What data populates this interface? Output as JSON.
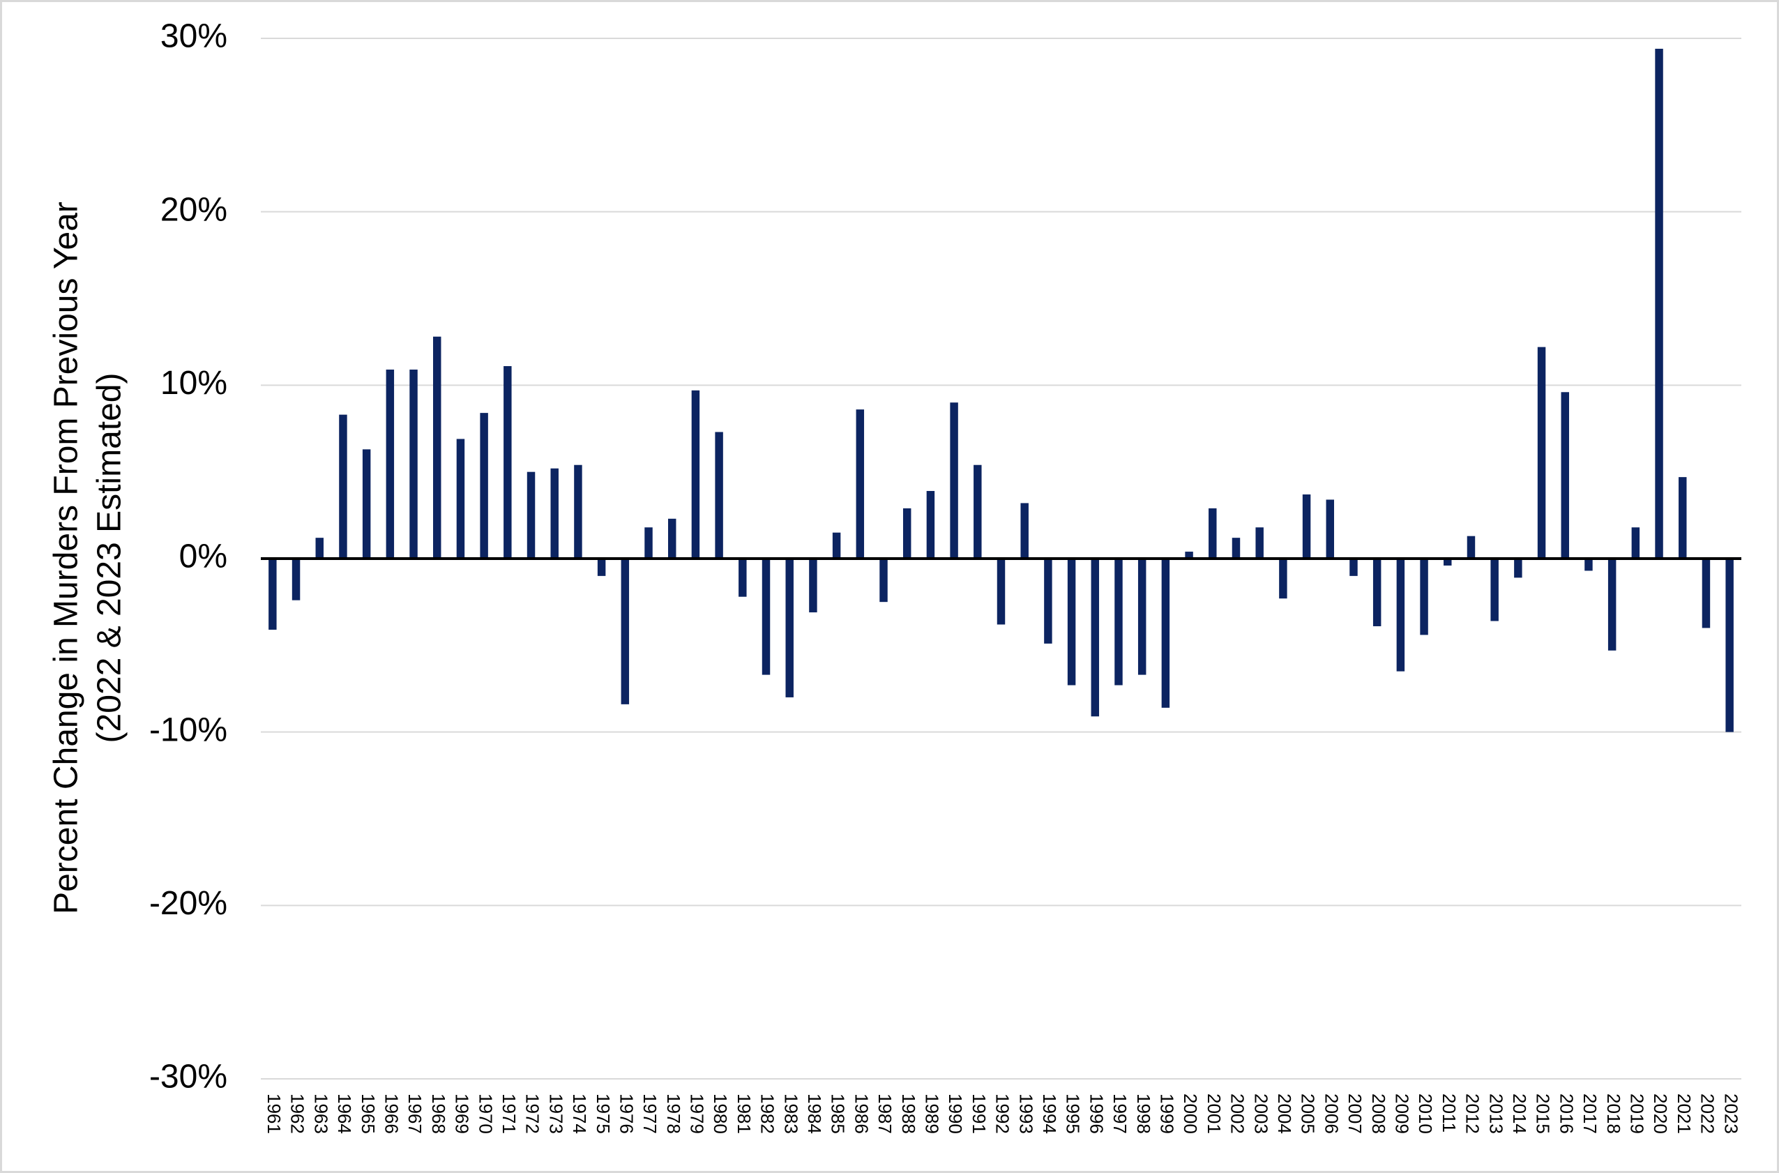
{
  "chart_data": {
    "type": "bar",
    "ylabel": [
      "Percent Change in Murders From Previous Year",
      "(2022 & 2023 Estimated)"
    ],
    "categories": [
      "1961",
      "1962",
      "1963",
      "1964",
      "1965",
      "1966",
      "1967",
      "1968",
      "1969",
      "1970",
      "1971",
      "1972",
      "1973",
      "1974",
      "1975",
      "1976",
      "1977",
      "1978",
      "1979",
      "1980",
      "1981",
      "1982",
      "1983",
      "1984",
      "1985",
      "1986",
      "1987",
      "1988",
      "1989",
      "1990",
      "1991",
      "1992",
      "1993",
      "1994",
      "1995",
      "1996",
      "1997",
      "1998",
      "1999",
      "2000",
      "2001",
      "2002",
      "2003",
      "2004",
      "2005",
      "2006",
      "2007",
      "2008",
      "2009",
      "2010",
      "2011",
      "2012",
      "2013",
      "2014",
      "2015",
      "2016",
      "2017",
      "2018",
      "2019",
      "2020",
      "2021",
      "2022",
      "2023"
    ],
    "values": [
      -4.1,
      -2.4,
      1.2,
      8.3,
      6.3,
      10.9,
      10.9,
      12.8,
      6.9,
      8.4,
      11.1,
      5.0,
      5.2,
      5.4,
      -1.0,
      -8.4,
      1.8,
      2.3,
      9.7,
      7.3,
      -2.2,
      -6.7,
      -8.0,
      -3.1,
      1.5,
      8.6,
      -2.5,
      2.9,
      3.9,
      9.0,
      5.4,
      -3.8,
      3.2,
      -4.9,
      -7.3,
      -9.1,
      -7.3,
      -6.7,
      -8.6,
      0.4,
      2.9,
      1.2,
      1.8,
      -2.3,
      3.7,
      3.4,
      -1.0,
      -3.9,
      -6.5,
      -4.4,
      -0.4,
      1.3,
      -3.6,
      -1.1,
      12.2,
      9.6,
      -0.7,
      -5.3,
      1.8,
      29.4,
      4.7,
      -4.0,
      -10.0
    ],
    "color": "#0c2461",
    "ylim": [
      -30,
      30
    ],
    "yticks": [
      {
        "value": -30,
        "label": "-30%"
      },
      {
        "value": -20,
        "label": "-20%"
      },
      {
        "value": -10,
        "label": "-10%"
      },
      {
        "value": 0,
        "label": "0%"
      },
      {
        "value": 10,
        "label": "10%"
      },
      {
        "value": 20,
        "label": "20%"
      },
      {
        "value": 30,
        "label": "30%"
      }
    ],
    "grid": true
  }
}
